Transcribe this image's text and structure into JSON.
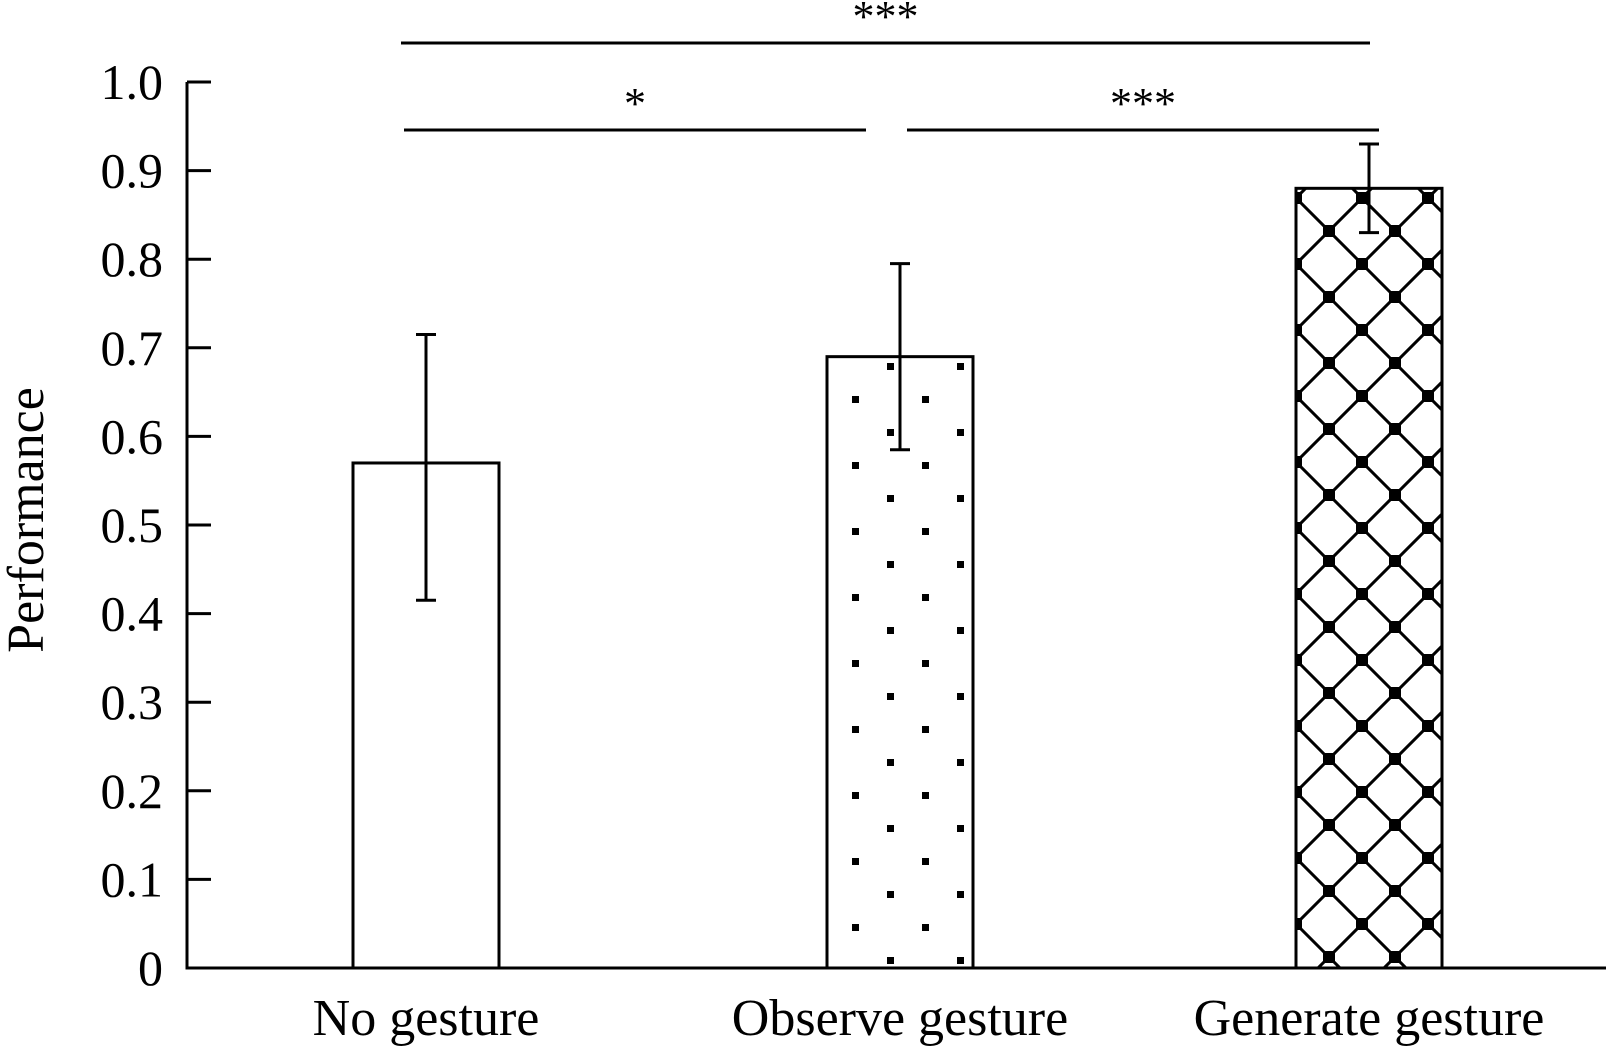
{
  "chart_data": {
    "type": "bar",
    "categories": [
      "No gesture",
      "Observe gesture",
      "Generate gesture"
    ],
    "values": [
      0.57,
      0.69,
      0.88
    ],
    "error_low": [
      0.415,
      0.585,
      0.83
    ],
    "error_high": [
      0.715,
      0.795,
      0.93
    ],
    "bar_patterns": [
      "none",
      "dots",
      "crosshatch"
    ],
    "title": "",
    "xlabel": "",
    "ylabel": "Performance",
    "ylim": [
      0,
      1.0
    ],
    "yticks": [
      0,
      0.1,
      0.2,
      0.3,
      0.4,
      0.5,
      0.6,
      0.7,
      0.8,
      0.9,
      1.0
    ],
    "ytick_labels": [
      "0",
      "0.1",
      "0.2",
      "0.3",
      "0.4",
      "0.5",
      "0.6",
      "0.7",
      "0.8",
      "0.9",
      "1.0"
    ],
    "grid": false,
    "significance": [
      {
        "from": 0,
        "to": 1,
        "label": "*"
      },
      {
        "from": 1,
        "to": 2,
        "label": "***"
      },
      {
        "from": 0,
        "to": 2,
        "label": "***"
      }
    ]
  }
}
